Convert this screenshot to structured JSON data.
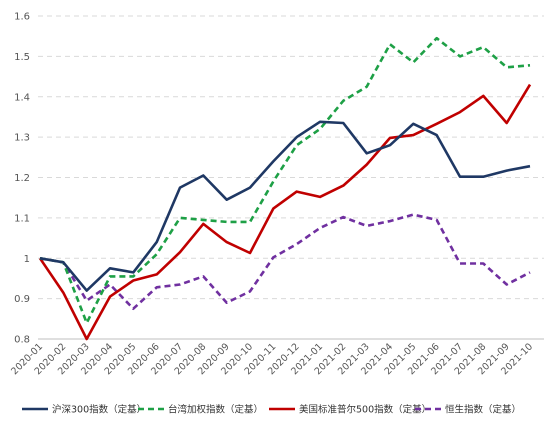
{
  "chart_data": {
    "type": "line",
    "title": "",
    "xlabel": "",
    "ylabel": "",
    "ylim": [
      0.8,
      1.6
    ],
    "yticks": [
      "0.8",
      "0.9",
      "1",
      "1.1",
      "1.2",
      "1.3",
      "1.4",
      "1.5",
      "1.6"
    ],
    "grid": "horizontal dashed",
    "legend_position": "bottom",
    "categories": [
      "2020-01",
      "2020-02",
      "2020-03",
      "2020-04",
      "2020-05",
      "2020-06",
      "2020-07",
      "2020-08",
      "2020-09",
      "2020-10",
      "2020-11",
      "2020-12",
      "2021-01",
      "2021-02",
      "2021-03",
      "2021-04",
      "2021-05",
      "2021-06",
      "2021-07",
      "2021-08",
      "2021-09",
      "2021-10"
    ],
    "series": [
      {
        "name": "沪深300指数（定基）",
        "color": "#1f3864",
        "style": "solid",
        "values": [
          1.0,
          0.99,
          0.92,
          0.975,
          0.965,
          1.04,
          1.175,
          1.205,
          1.145,
          1.175,
          1.24,
          1.3,
          1.338,
          1.335,
          1.26,
          1.28,
          1.333,
          1.305,
          1.202,
          1.202,
          1.217,
          1.228
        ]
      },
      {
        "name": "台湾加权指数（定基）",
        "color": "#1ea046",
        "style": "dashed",
        "values": [
          1.0,
          0.99,
          0.84,
          0.955,
          0.955,
          1.01,
          1.1,
          1.095,
          1.09,
          1.09,
          1.19,
          1.28,
          1.32,
          1.39,
          1.425,
          1.53,
          1.485,
          1.545,
          1.5,
          1.523,
          1.473,
          1.478
        ]
      },
      {
        "name": "美国标准普尔500指数（定基）",
        "color": "#c00000",
        "style": "solid",
        "values": [
          1.0,
          0.915,
          0.8,
          0.905,
          0.945,
          0.96,
          1.015,
          1.085,
          1.04,
          1.013,
          1.123,
          1.165,
          1.152,
          1.18,
          1.232,
          1.298,
          1.305,
          1.333,
          1.362,
          1.402,
          1.335,
          1.43
        ]
      },
      {
        "name": "恒生指数（定基）",
        "color": "#7030a0",
        "style": "dashed",
        "values": [
          1.0,
          0.99,
          0.895,
          0.935,
          0.875,
          0.928,
          0.935,
          0.955,
          0.89,
          0.918,
          1.002,
          1.035,
          1.075,
          1.102,
          1.08,
          1.092,
          1.108,
          1.095,
          0.987,
          0.987,
          0.935,
          0.965
        ]
      }
    ]
  }
}
